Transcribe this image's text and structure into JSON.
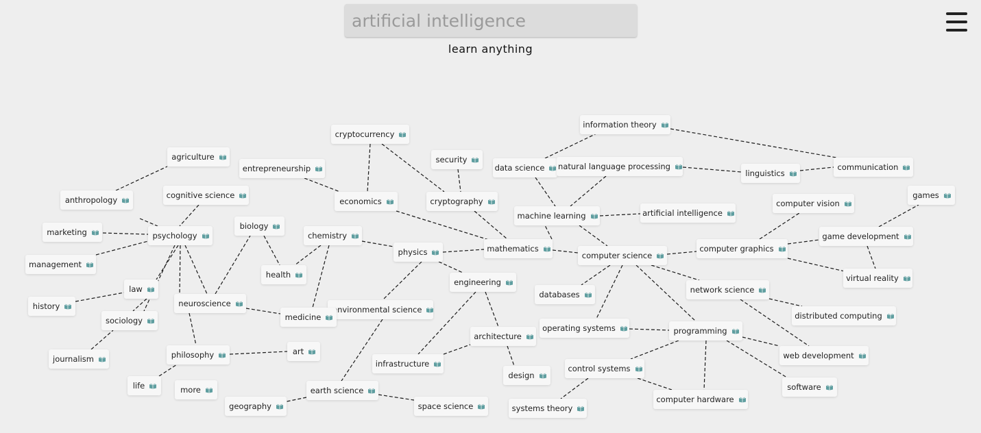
{
  "search": {
    "value": "",
    "placeholder": "artificial intelligence"
  },
  "tagline": "learn anything",
  "menu_icon": "hamburger-menu-icon",
  "node_icon": "book-icon",
  "colors": {
    "background": "#eeeeee",
    "node_bg": "#f7f7f7",
    "book_icon": "#5f9ea0",
    "edge": "#1a1a1a"
  },
  "nodes": [
    {
      "id": "information-theory",
      "label": "information theory"
    },
    {
      "id": "cryptocurrency",
      "label": "cryptocurrency"
    },
    {
      "id": "agriculture",
      "label": "agriculture"
    },
    {
      "id": "security",
      "label": "security"
    },
    {
      "id": "entrepreneurship",
      "label": "entrepreneurship"
    },
    {
      "id": "data-science",
      "label": "data science"
    },
    {
      "id": "natural-language-processing",
      "label": "natural language processing"
    },
    {
      "id": "linguistics",
      "label": "linguistics"
    },
    {
      "id": "communication",
      "label": "communication"
    },
    {
      "id": "cognitive-science",
      "label": "cognitive science"
    },
    {
      "id": "anthropology",
      "label": "anthropology"
    },
    {
      "id": "economics",
      "label": "economics"
    },
    {
      "id": "cryptography",
      "label": "cryptography"
    },
    {
      "id": "games",
      "label": "games"
    },
    {
      "id": "computer-vision",
      "label": "computer vision"
    },
    {
      "id": "artificial-intelligence",
      "label": "artificial intelligence"
    },
    {
      "id": "machine-learning",
      "label": "machine learning"
    },
    {
      "id": "biology",
      "label": "biology"
    },
    {
      "id": "marketing",
      "label": "marketing"
    },
    {
      "id": "psychology",
      "label": "psychology"
    },
    {
      "id": "chemistry",
      "label": "chemistry"
    },
    {
      "id": "game-development",
      "label": "game development"
    },
    {
      "id": "mathematics",
      "label": "mathematics"
    },
    {
      "id": "computer-graphics",
      "label": "computer graphics"
    },
    {
      "id": "physics",
      "label": "physics"
    },
    {
      "id": "computer-science",
      "label": "computer science"
    },
    {
      "id": "management",
      "label": "management"
    },
    {
      "id": "health",
      "label": "health"
    },
    {
      "id": "virtual-reality",
      "label": "virtual reality"
    },
    {
      "id": "engineering",
      "label": "engineering"
    },
    {
      "id": "law",
      "label": "law"
    },
    {
      "id": "network-science",
      "label": "network science"
    },
    {
      "id": "databases",
      "label": "databases"
    },
    {
      "id": "history",
      "label": "history"
    },
    {
      "id": "neuroscience",
      "label": "neuroscience"
    },
    {
      "id": "environmental-science",
      "label": "environmental science"
    },
    {
      "id": "distributed-computing",
      "label": "distributed computing"
    },
    {
      "id": "medicine",
      "label": "medicine"
    },
    {
      "id": "sociology",
      "label": "sociology"
    },
    {
      "id": "operating-systems",
      "label": "operating systems"
    },
    {
      "id": "programming",
      "label": "programming"
    },
    {
      "id": "architecture",
      "label": "architecture"
    },
    {
      "id": "philosophy",
      "label": "philosophy"
    },
    {
      "id": "art",
      "label": "art"
    },
    {
      "id": "web-development",
      "label": "web development"
    },
    {
      "id": "journalism",
      "label": "journalism"
    },
    {
      "id": "infrastructure",
      "label": "infrastructure"
    },
    {
      "id": "control-systems",
      "label": "control systems"
    },
    {
      "id": "design",
      "label": "design"
    },
    {
      "id": "life",
      "label": "life"
    },
    {
      "id": "more",
      "label": "more"
    },
    {
      "id": "earth-science",
      "label": "earth science"
    },
    {
      "id": "software",
      "label": "software"
    },
    {
      "id": "computer-hardware",
      "label": "computer hardware"
    },
    {
      "id": "geography",
      "label": "geography"
    },
    {
      "id": "space-science",
      "label": "space science"
    },
    {
      "id": "systems-theory",
      "label": "systems theory"
    }
  ]
}
